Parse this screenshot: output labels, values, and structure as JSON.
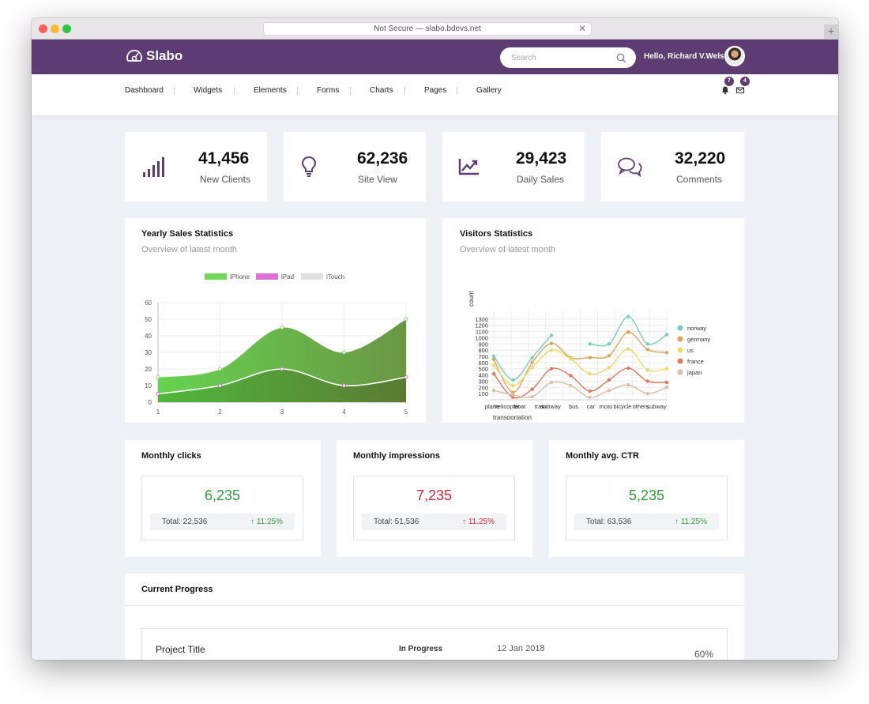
{
  "browser": {
    "url": "Not Secure — slabo.bdevs.net",
    "close_glyph": "✕",
    "new_tab_glyph": "+"
  },
  "topbar": {
    "brand": "Slabo",
    "search_placeholder": "Search",
    "greeting": "Hello, Richard V.Welsh !",
    "brand_color": "#5d3b73"
  },
  "nav": {
    "items": [
      "Dashboard",
      "Widgets",
      "Elements",
      "Forms",
      "Charts",
      "Pages",
      "Gallery"
    ],
    "notifications_count": "7",
    "messages_count": "4"
  },
  "stats": [
    {
      "value": "41,456",
      "label": "New Clients",
      "icon": "signal-bars-icon"
    },
    {
      "value": "62,236",
      "label": "Site View",
      "icon": "lightbulb-icon"
    },
    {
      "value": "29,423",
      "label": "Daily Sales",
      "icon": "trend-chart-icon"
    },
    {
      "value": "32,220",
      "label": "Comments",
      "icon": "chat-bubbles-icon"
    }
  ],
  "yearly": {
    "title": "Yearly Sales Statistics",
    "subtitle": "Overview of latest month"
  },
  "visitors": {
    "title": "Visitors Statistics",
    "subtitle": "Overview of latest month"
  },
  "monthly": [
    {
      "title": "Monthly clicks",
      "value": "6,235",
      "total": "Total: 22,536",
      "change": "↑ 11.25%",
      "trend": "up"
    },
    {
      "title": "Monthly impressions",
      "value": "7,235",
      "total": "Total: 51,536",
      "change": "↑ 11.25%",
      "trend": "down"
    },
    {
      "title": "Monthly avg. CTR",
      "value": "5,235",
      "total": "Total: 63,536",
      "change": "↑ 11.25%",
      "trend": "up"
    }
  ],
  "progress": {
    "title": "Current Progress",
    "project_title": "Project Title",
    "status": "In Progress",
    "date": "12 Jan 2018",
    "percent": "60%",
    "percent_value": 60
  },
  "chart_data": [
    {
      "type": "area",
      "x": [
        1,
        2,
        3,
        4,
        5
      ],
      "xlabel": "",
      "ylabel": "",
      "ylim": [
        0,
        60
      ],
      "yticks": [
        0,
        10,
        20,
        30,
        40,
        50,
        60
      ],
      "legend_position": "top",
      "grid": true,
      "series": [
        {
          "name": "iPhone",
          "values": [
            15,
            20,
            45,
            30,
            50
          ],
          "color": "#6fd85c"
        },
        {
          "name": "iPad",
          "values": [
            5,
            10,
            20,
            10,
            15
          ],
          "color": "#de71d8"
        },
        {
          "name": "iTouch",
          "values": [
            0,
            0,
            0,
            0,
            0
          ],
          "color": "#e1e1e1"
        }
      ]
    },
    {
      "type": "line",
      "categories": [
        "plane",
        "helicopter",
        "boat",
        "train",
        "subway",
        "bus",
        "car",
        "moto",
        "bicycle",
        "others"
      ],
      "tick_labels": [
        "plane",
        "helicopter",
        "boat",
        "train",
        "subway",
        "bus",
        "car",
        "moto",
        "bicycle",
        "others",
        "subway"
      ],
      "xlabel": "transportation",
      "ylabel": "count",
      "ylim": [
        0,
        1400
      ],
      "yticks": [
        100,
        200,
        300,
        400,
        500,
        600,
        700,
        800,
        900,
        1000,
        1100,
        1200,
        1300
      ],
      "legend_position": "right",
      "grid": true,
      "series": [
        {
          "name": "norway",
          "values": [
            700,
            320,
            680,
            1040,
            null,
            900,
            900,
            1340,
            900,
            1050
          ],
          "color": "#78cdbd"
        },
        {
          "name": "germany",
          "values": [
            650,
            120,
            600,
            910,
            680,
            680,
            710,
            1090,
            810,
            760
          ],
          "color": "#dda658"
        },
        {
          "name": "us",
          "values": [
            560,
            230,
            520,
            800,
            660,
            420,
            520,
            820,
            480,
            500
          ],
          "color": "#eeda67"
        },
        {
          "name": "france",
          "values": [
            420,
            40,
            170,
            500,
            390,
            140,
            320,
            510,
            300,
            280
          ],
          "color": "#e07860"
        },
        {
          "name": "japan",
          "values": [
            150,
            80,
            50,
            280,
            230,
            40,
            150,
            240,
            100,
            200
          ],
          "color": "#dbbfa6"
        }
      ]
    }
  ]
}
